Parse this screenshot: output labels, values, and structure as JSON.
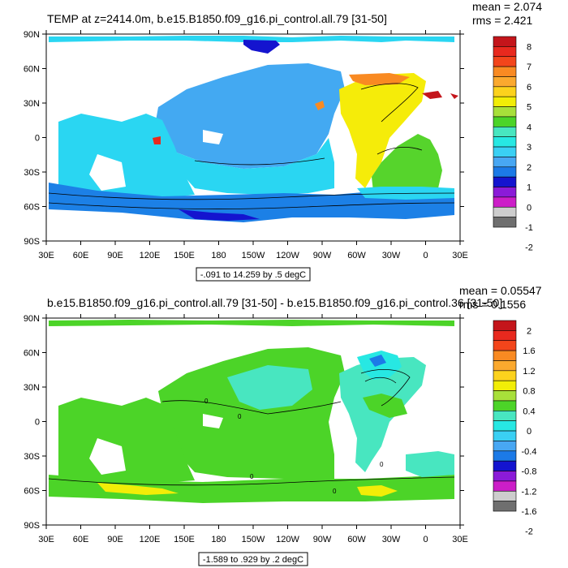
{
  "panels": [
    {
      "title": "TEMP at z=2414.0m, b.e15.B1850.f09_g16.pi_control.all.79 [31-50]",
      "mean_text": "mean = 2.074",
      "rms_text": "rms = 2.421",
      "range_text": "-.091 to 14.259 by .5 degC",
      "colorbar_labels": [
        "8",
        "7",
        "6",
        "5",
        "4",
        "3",
        "2",
        "1",
        "0",
        "-1",
        "-2"
      ],
      "colorbar_colors": [
        "#c4151b",
        "#e8291e",
        "#f3451b",
        "#f98a22",
        "#fba92e",
        "#fcd21d",
        "#f2ed07",
        "#a8e03a",
        "#4cd428",
        "#48e6c0",
        "#27e8e3",
        "#3ad0f4",
        "#48a7f3",
        "#1c7ae7",
        "#1414cf",
        "#8b1bd8",
        "#cc1ec8",
        "#cdcdcd",
        "#6f6f6f"
      ],
      "regions": {
        "north_pacific": "#43a9f2",
        "tropical_pacific": "#2ad6f2",
        "southern_ocean": "#1c80e6",
        "atlantic": "#f5ec09",
        "south_atlantic": "#56d42c",
        "indian": "#2ad6f2",
        "arctic": "#2ad6f2"
      }
    },
    {
      "title": "b.e15.B1850.f09_g16.pi_control.all.79 [31-50] - b.e15.B1850.f09_g16.pi_control.36 [31-50]",
      "mean_text": "mean = 0.05547",
      "rms_text": "rms = 0.1556",
      "range_text": "-1.589 to .929 by .2 degC",
      "colorbar_labels": [
        "2",
        "1.6",
        "1.2",
        "0.8",
        "0.4",
        "0",
        "-0.4",
        "-0.8",
        "-1.2",
        "-1.6",
        "-2"
      ],
      "colorbar_colors": [
        "#c4151b",
        "#e8291e",
        "#f3451b",
        "#f98a22",
        "#fba92e",
        "#fcd21d",
        "#f2ed07",
        "#a8e03a",
        "#4cd428",
        "#48e6c0",
        "#27e8e3",
        "#3ad0f4",
        "#48a7f3",
        "#1c7ae7",
        "#1414cf",
        "#8b1bd8",
        "#cc1ec8",
        "#cdcdcd",
        "#6f6f6f"
      ],
      "contour_labels": [
        "0",
        "0",
        "0",
        "0",
        "0"
      ],
      "regions": {
        "pacific": "#4cd428",
        "north_atlantic": "#48e6c0",
        "labrador": "#27e8e3",
        "southern": "#4cd428",
        "south_warm": "#f2ed07",
        "indian": "#4cd428",
        "arctic": "#4cd428"
      }
    }
  ],
  "axes": {
    "lat_labels": [
      "90N",
      "60N",
      "30N",
      "0",
      "30S",
      "60S",
      "90S"
    ],
    "lon_labels": [
      "30E",
      "60E",
      "90E",
      "120E",
      "150E",
      "180",
      "150W",
      "120W",
      "90W",
      "60W",
      "30W",
      "0",
      "30E"
    ]
  }
}
